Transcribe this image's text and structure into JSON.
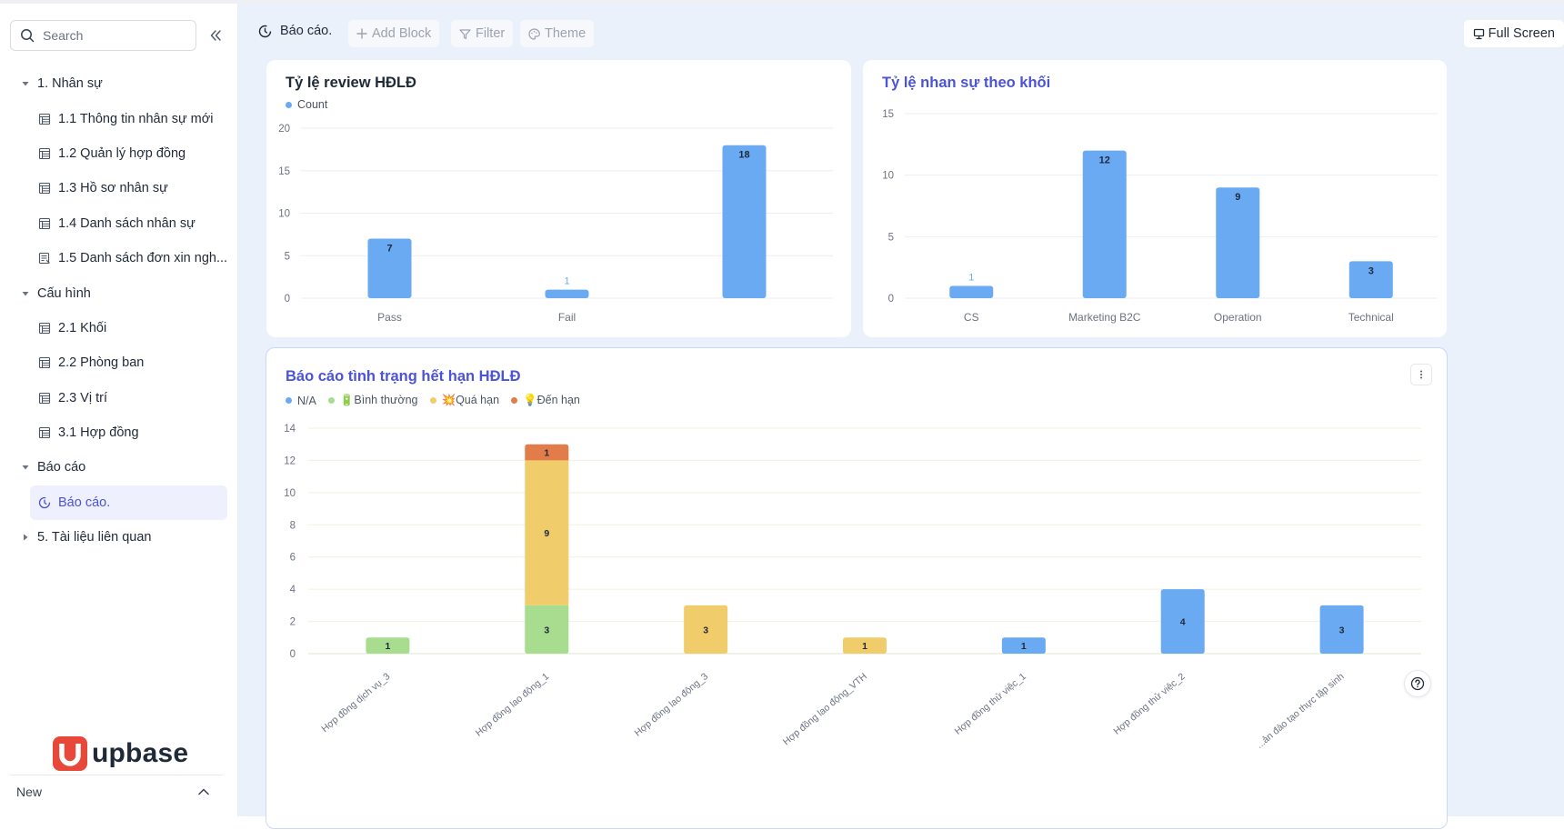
{
  "sidebar": {
    "search_placeholder": "Search",
    "groups": [
      {
        "label": "1. Nhân sự",
        "expanded": true,
        "items": [
          {
            "label": "1.1 Thông tin nhân sự mới",
            "icon": "table-icon"
          },
          {
            "label": "1.2 Quản lý hợp đồng",
            "icon": "table-icon"
          },
          {
            "label": "1.3 Hồ sơ nhân sự",
            "icon": "table-icon"
          },
          {
            "label": "1.4 Danh sách nhân sự",
            "icon": "table-icon"
          },
          {
            "label": "1.5 Danh sách đơn xin ngh...",
            "icon": "form-icon"
          }
        ]
      },
      {
        "label": "Cấu hình",
        "expanded": true,
        "items": [
          {
            "label": "2.1 Khối",
            "icon": "table-icon"
          },
          {
            "label": "2.2 Phòng ban",
            "icon": "table-icon"
          },
          {
            "label": "2.3 Vị trí",
            "icon": "table-icon"
          },
          {
            "label": "3.1 Hợp đồng",
            "icon": "table-icon"
          }
        ]
      },
      {
        "label": "Báo cáo",
        "expanded": true,
        "items": [
          {
            "label": "Báo cáo.",
            "icon": "report-icon",
            "active": true
          }
        ]
      },
      {
        "label": "5. Tài liệu liên quan",
        "expanded": false,
        "items": []
      }
    ],
    "logo_text": "upbase",
    "new_label": "New"
  },
  "toolbar": {
    "breadcrumb": "Báo cáo.",
    "add_block": "Add Block",
    "filter": "Filter",
    "theme": "Theme",
    "full_screen": "Full Screen"
  },
  "colors": {
    "accent": "#4b53d6",
    "bar_blue": "#6aaaf3",
    "green": "#a8dc8f",
    "yellow": "#f1cc6b",
    "orange": "#e27d4b"
  },
  "chart_data": [
    {
      "type": "bar",
      "title": "Tỷ lệ review HĐLĐ",
      "categories": [
        "Pass",
        "Fail",
        ""
      ],
      "series": [
        {
          "name": "Count",
          "values": [
            7,
            1,
            18
          ]
        }
      ],
      "ylim": [
        0,
        20
      ],
      "yticks": [
        0,
        5,
        10,
        15,
        20
      ],
      "legend": "top-left",
      "grid": true
    },
    {
      "type": "bar",
      "title": "Tỷ lệ nhan sự theo khối",
      "categories": [
        "CS",
        "Marketing B2C",
        "Operation",
        "Technical"
      ],
      "series": [
        {
          "name": "",
          "values": [
            1,
            12,
            9,
            3
          ]
        }
      ],
      "ylim": [
        0,
        15
      ],
      "yticks": [
        0,
        5,
        10,
        15
      ],
      "grid": true
    },
    {
      "type": "bar",
      "stacked": true,
      "title": "Báo cáo tình trạng hết hạn HĐLĐ",
      "categories": [
        "Hợp đồng dịch vụ_3",
        "Hợp đồng lao động_1",
        "Hợp đồng lao động_3",
        "Hợp đồng lao động_VTH",
        "Hợp đồng thử việc_1",
        "Hợp đồng thử việc_2",
        "...ản đào tạo thực tập sinh"
      ],
      "series": [
        {
          "name": "N/A",
          "values": [
            0,
            0,
            0,
            0,
            1,
            4,
            3
          ]
        },
        {
          "name": "🔋Bình thường",
          "values": [
            1,
            3,
            0,
            0,
            0,
            0,
            0
          ]
        },
        {
          "name": "💥Quá hạn",
          "values": [
            0,
            9,
            3,
            1,
            0,
            0,
            0
          ]
        },
        {
          "name": "💡Đến hạn",
          "values": [
            0,
            1,
            0,
            0,
            0,
            0,
            0
          ]
        }
      ],
      "ylim": [
        0,
        14
      ],
      "yticks": [
        0,
        2,
        4,
        6,
        8,
        10,
        12,
        14
      ],
      "legend": "top-left",
      "grid": true
    }
  ]
}
